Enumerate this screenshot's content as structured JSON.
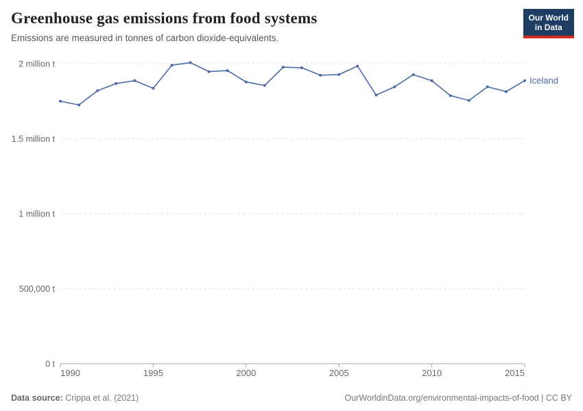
{
  "header": {
    "title": "Greenhouse gas emissions from food systems",
    "subtitle": "Emissions are measured in tonnes of carbon dioxide-equivalents.",
    "logo": {
      "line1": "Our World",
      "line2": "in Data"
    }
  },
  "footer": {
    "source_label": "Data source:",
    "source_value": " Crippa et al. (2021)",
    "attribution": "OurWorldinData.org/environmental-impacts-of-food | CC BY"
  },
  "colors": {
    "line": "#4a69a5",
    "series_label": "#4a69a5",
    "gridline": "#dddddd",
    "axis": "#a0a0a0",
    "tick_label": "#666666",
    "logo_bg": "#1d3d63",
    "logo_red": "#d42a20"
  },
  "chart_data": {
    "type": "line",
    "title": "Greenhouse gas emissions from food systems",
    "subtitle": "Emissions are measured in tonnes of carbon dioxide-equivalents.",
    "xlabel": "",
    "ylabel": "",
    "xlim": [
      1990,
      2015
    ],
    "ylim": [
      0,
      2000000
    ],
    "grid": "horizontal-dashed",
    "legend_position": "end-of-line",
    "x_ticks": [
      1990,
      1995,
      2000,
      2005,
      2010,
      2015
    ],
    "y_ticks": [
      {
        "value": 0,
        "label": "0 t"
      },
      {
        "value": 500000,
        "label": "500,000 t"
      },
      {
        "value": 1000000,
        "label": "1 million t"
      },
      {
        "value": 1500000,
        "label": "1.5 million t"
      },
      {
        "value": 2000000,
        "label": "2 million t"
      }
    ],
    "series": [
      {
        "name": "Iceland",
        "color": "#4a69a5",
        "x": [
          1990,
          1991,
          1992,
          1993,
          1994,
          1995,
          1996,
          1997,
          1998,
          1999,
          2000,
          2001,
          2002,
          2003,
          2004,
          2005,
          2006,
          2007,
          2008,
          2009,
          2010,
          2011,
          2012,
          2013,
          2014,
          2015
        ],
        "values": [
          1750000,
          1725000,
          1820000,
          1868000,
          1887000,
          1836000,
          1990000,
          2007000,
          1947000,
          1954000,
          1878000,
          1855000,
          1977000,
          1973000,
          1923000,
          1928000,
          1984000,
          1791000,
          1846000,
          1927000,
          1887000,
          1787000,
          1755000,
          1846000,
          1814000,
          1887000
        ]
      }
    ]
  }
}
